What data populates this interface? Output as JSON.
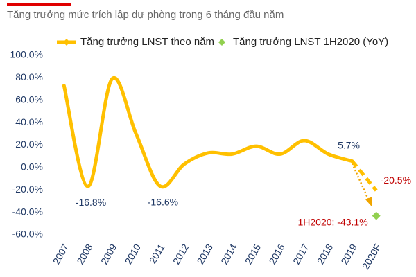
{
  "chart_data": {
    "type": "line",
    "title": "Tăng trưởng mức trích lập dự phòng trong 6 tháng đầu năm",
    "categories": [
      "2007",
      "2008",
      "2009",
      "2010",
      "2011",
      "2012",
      "2013",
      "2014",
      "2015",
      "2016",
      "2017",
      "2018",
      "2019",
      "2020F"
    ],
    "series": [
      {
        "name": "Tăng trưởng LNST theo năm",
        "color": "#ffc000",
        "marker": "line",
        "values": [
          73,
          -16.8,
          79,
          30,
          -16.6,
          3,
          13,
          12,
          19,
          12,
          24,
          12,
          5.7,
          -20.5
        ],
        "value_labels": [
          null,
          "-16.8%",
          null,
          null,
          "-16.6%",
          null,
          null,
          null,
          null,
          null,
          null,
          null,
          "5.7%",
          "-20.5%"
        ],
        "value_label_colors": [
          null,
          "#1f3864",
          null,
          null,
          "#1f3864",
          null,
          null,
          null,
          null,
          null,
          null,
          null,
          "#1f3864",
          "#c00000"
        ],
        "dashed_last_segment": true
      },
      {
        "name": "Tăng trưởng LNST 1H2020 (YoY)",
        "color": "#92d050",
        "marker": "diamond",
        "values": [
          null,
          null,
          null,
          null,
          null,
          null,
          null,
          null,
          null,
          null,
          null,
          null,
          null,
          -43.1
        ],
        "value_labels": [
          null,
          null,
          null,
          null,
          null,
          null,
          null,
          null,
          null,
          null,
          null,
          null,
          null,
          "1H2020: -43.1%"
        ],
        "value_label_colors": [
          null,
          null,
          null,
          null,
          null,
          null,
          null,
          null,
          null,
          null,
          null,
          null,
          null,
          "#c00000"
        ]
      }
    ],
    "ylim": [
      -60,
      100
    ],
    "yticks": [
      {
        "value": -60,
        "label": "-60.0%"
      },
      {
        "value": -40,
        "label": "-40.0%"
      },
      {
        "value": -20,
        "label": "-20.0%"
      },
      {
        "value": 0,
        "label": "0.0%"
      },
      {
        "value": 20,
        "label": "20.0%"
      },
      {
        "value": 40,
        "label": "40.0%"
      },
      {
        "value": 60,
        "label": "60.0%"
      },
      {
        "value": 80,
        "label": "80.0%"
      },
      {
        "value": 100,
        "label": "100.0%"
      }
    ],
    "grid": false
  }
}
